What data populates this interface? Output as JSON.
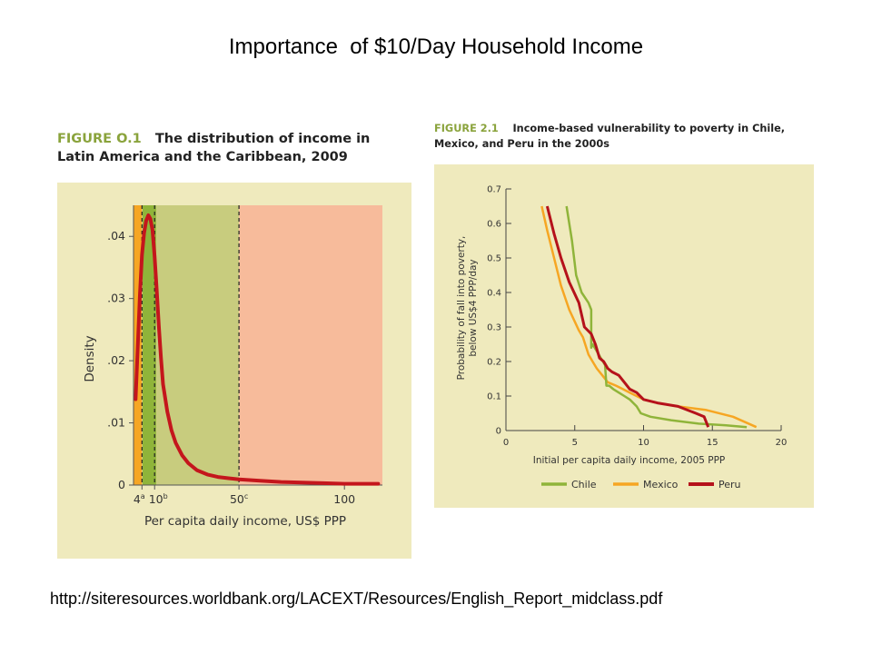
{
  "slide": {
    "title": "Importance  of $10/Day Household Income",
    "url": "http://siteresources.worldbank.org/LACEXT/Resources/English_Report_midclass.pdf"
  },
  "colors": {
    "panel_bg": "#efeabd",
    "band_low": "#f6a623",
    "band_mid": "#c8cc7e",
    "band_high": "#f7bb9b",
    "band_peak": "#8fb43a",
    "density_line": "#c4161c",
    "chile": "#8fb43a",
    "mexico": "#f6a623",
    "peru": "#b5121b"
  },
  "chart_data": [
    {
      "type": "line",
      "figure_label": "FIGURE O.1",
      "title": "The distribution of income in Latin America and the Caribbean, 2009",
      "xlabel": "Per capita daily income, US$ PPP",
      "ylabel": "Density",
      "xlim": [
        0,
        118
      ],
      "ylim": [
        0,
        0.045
      ],
      "x_ticks": [
        {
          "value": 4,
          "label": "4",
          "sup": "a"
        },
        {
          "value": 10,
          "label": "10",
          "sup": "b"
        },
        {
          "value": 50,
          "label": "50",
          "sup": "c"
        },
        {
          "value": 100,
          "label": "100",
          "sup": ""
        }
      ],
      "y_ticks": [
        {
          "value": 0,
          "label": "0"
        },
        {
          "value": 0.01,
          "label": ".01"
        },
        {
          "value": 0.02,
          "label": ".02"
        },
        {
          "value": 0.03,
          "label": ".03"
        },
        {
          "value": 0.04,
          "label": ".04"
        }
      ],
      "bands": [
        {
          "from": 0,
          "to": 4,
          "color_key": "band_low"
        },
        {
          "from": 4,
          "to": 10,
          "color_key": "band_mid"
        },
        {
          "from": 10,
          "to": 50,
          "color_key": "band_mid"
        },
        {
          "from": 50,
          "to": 118,
          "color_key": "band_high"
        },
        {
          "from": 4.3,
          "to": 10.7,
          "color_key": "band_peak"
        }
      ],
      "dashed_lines": [
        4,
        10,
        50
      ],
      "series": [
        {
          "x": [
            1,
            2,
            3,
            4,
            5,
            6,
            7,
            8,
            9,
            10,
            11,
            12,
            13,
            14,
            16,
            18,
            20,
            23,
            26,
            30,
            35,
            40,
            45,
            50,
            60,
            70,
            80,
            90,
            100,
            110,
            116
          ],
          "y": [
            0.0138,
            0.022,
            0.0305,
            0.037,
            0.0405,
            0.0425,
            0.0434,
            0.0428,
            0.041,
            0.0368,
            0.0315,
            0.0255,
            0.0205,
            0.0162,
            0.0118,
            0.0088,
            0.0068,
            0.0048,
            0.0035,
            0.0024,
            0.0017,
            0.0013,
            0.0011,
            0.0009,
            0.0007,
            0.0005,
            0.0004,
            0.0003,
            0.0002,
            0.0002,
            0.0002
          ]
        }
      ]
    },
    {
      "type": "line",
      "figure_label": "FIGURE 2.1",
      "title": "Income-based vulnerability to poverty in Chile, Mexico, and Peru in the 2000s",
      "xlabel": "Initial per capita daily income, 2005 PPP",
      "ylabel": "Probability of fall into poverty, below US$4 PPP/day",
      "xlim": [
        0,
        20
      ],
      "ylim": [
        0,
        0.7
      ],
      "x_ticks": [
        0,
        5,
        10,
        15,
        20
      ],
      "y_ticks": [
        0,
        0.1,
        0.2,
        0.3,
        0.4,
        0.5,
        0.6,
        0.7
      ],
      "series": [
        {
          "name": "Chile",
          "color_key": "chile",
          "x": [
            4.4,
            4.8,
            5.1,
            5.5,
            6.0,
            6.2,
            6.2,
            6.3,
            6.6,
            6.9,
            7.2,
            7.3,
            7.5,
            7.8,
            8.2,
            8.6,
            9.0,
            9.5,
            9.8,
            10.5,
            12.0,
            14.0,
            16.0,
            17.5
          ],
          "y": [
            0.65,
            0.55,
            0.45,
            0.4,
            0.37,
            0.35,
            0.24,
            0.25,
            0.23,
            0.21,
            0.19,
            0.13,
            0.13,
            0.12,
            0.11,
            0.1,
            0.09,
            0.07,
            0.05,
            0.04,
            0.03,
            0.02,
            0.015,
            0.01
          ]
        },
        {
          "name": "Mexico",
          "color_key": "mexico",
          "x": [
            2.6,
            3.0,
            3.5,
            4.0,
            4.6,
            5.3,
            5.6,
            6.0,
            6.3,
            6.6,
            7.0,
            7.4,
            8.0,
            8.5,
            9.0,
            9.5,
            10.0,
            11.0,
            12.5,
            14.5,
            16.5,
            18.2
          ],
          "y": [
            0.65,
            0.58,
            0.5,
            0.42,
            0.35,
            0.29,
            0.27,
            0.22,
            0.2,
            0.18,
            0.16,
            0.14,
            0.13,
            0.12,
            0.11,
            0.1,
            0.09,
            0.08,
            0.07,
            0.06,
            0.04,
            0.01
          ]
        },
        {
          "name": "Peru",
          "color_key": "peru",
          "x": [
            3.0,
            3.5,
            4.0,
            4.6,
            5.3,
            5.7,
            6.2,
            6.5,
            6.8,
            7.1,
            7.4,
            7.7,
            8.2,
            8.6,
            9.0,
            9.5,
            10.0,
            11.0,
            12.5,
            13.8,
            14.4,
            14.7
          ],
          "y": [
            0.65,
            0.57,
            0.5,
            0.43,
            0.37,
            0.3,
            0.28,
            0.25,
            0.21,
            0.2,
            0.18,
            0.17,
            0.16,
            0.14,
            0.12,
            0.11,
            0.09,
            0.08,
            0.07,
            0.05,
            0.04,
            0.01
          ]
        }
      ]
    }
  ]
}
